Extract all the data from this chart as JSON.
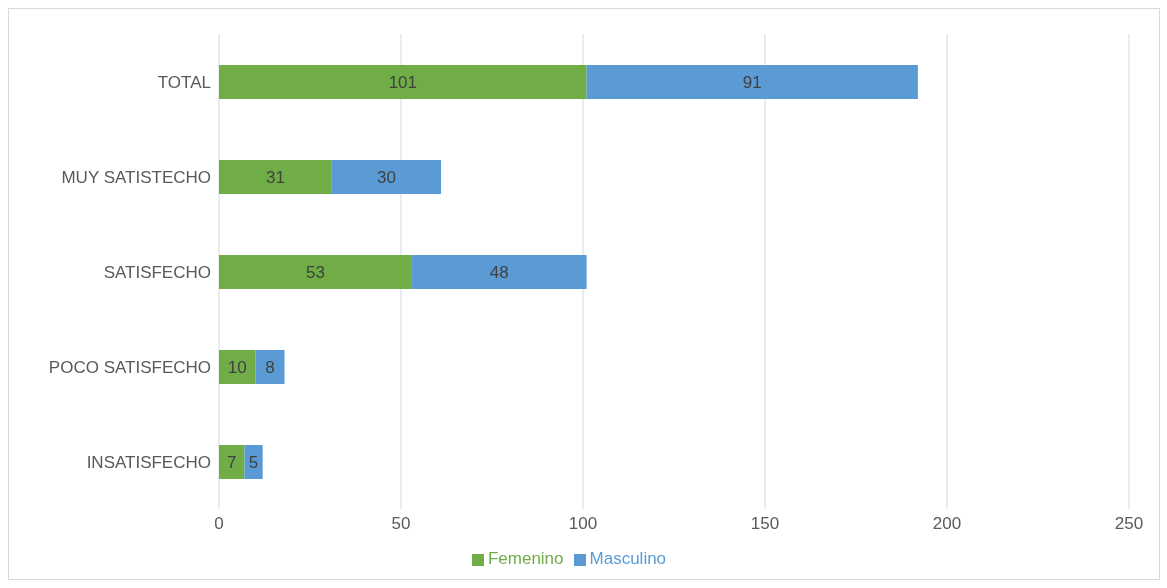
{
  "chart_data": {
    "type": "bar",
    "orientation": "horizontal",
    "stacked": true,
    "categories": [
      "TOTAL",
      "MUY SATISTECHO",
      "SATISFECHO",
      "POCO SATISFECHO",
      "INSATISFECHO"
    ],
    "series": [
      {
        "name": "Femenino",
        "color": "#70ad47",
        "values": [
          101,
          31,
          53,
          10,
          7
        ]
      },
      {
        "name": "Masculino",
        "color": "#5b9bd5",
        "values": [
          91,
          30,
          48,
          8,
          5
        ]
      }
    ],
    "xlim": [
      0,
      250
    ],
    "xticks": [
      0,
      50,
      100,
      150,
      200,
      250
    ],
    "grid": "x",
    "legend": "bottom",
    "data_labels": true
  }
}
